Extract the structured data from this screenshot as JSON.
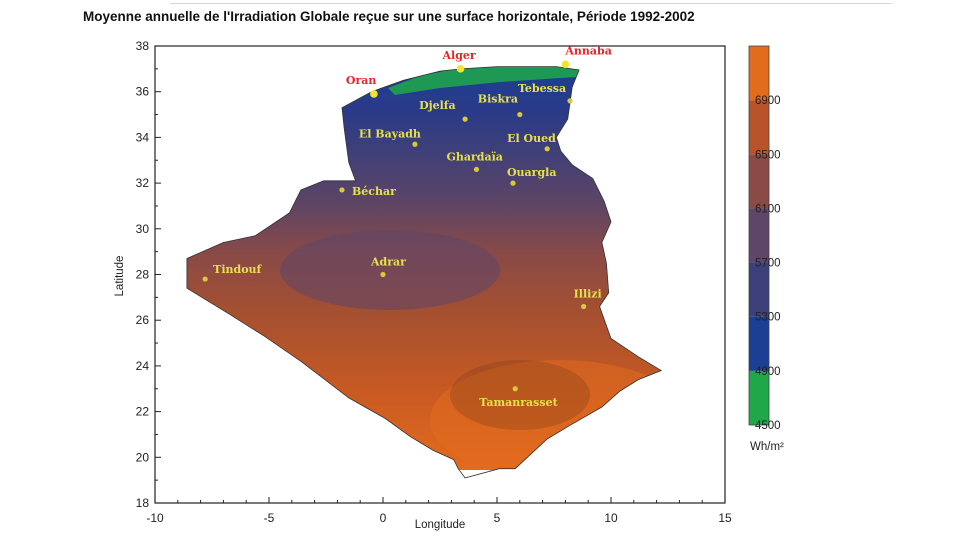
{
  "title": "Moyenne annuelle de l'Irradiation Globale reçue sur une surface horizontale, Période 1992-2002",
  "axes": {
    "xlabel": "Longitude",
    "ylabel": "Latitude",
    "xlim": [
      -10,
      15
    ],
    "ylim": [
      18,
      38
    ],
    "xticks": [
      "-10",
      "-5",
      "0",
      "5",
      "10",
      "15"
    ],
    "yticks": [
      "18",
      "20",
      "22",
      "24",
      "26",
      "28",
      "30",
      "32",
      "34",
      "36",
      "38"
    ]
  },
  "legend": {
    "unit": "Wh/m²",
    "levels": [
      "4500",
      "4900",
      "5300",
      "5700",
      "6100",
      "6500",
      "6900"
    ],
    "colors": [
      "#1fa84a",
      "#1c3f93",
      "#3d3f7a",
      "#5e4669",
      "#8a4a46",
      "#b9532a",
      "#e36b1e"
    ]
  },
  "cities": [
    {
      "name": "Alger",
      "color": "#e8242b"
    },
    {
      "name": "Annaba",
      "color": "#e8242b"
    },
    {
      "name": "Oran",
      "color": "#e8242b"
    },
    {
      "name": "Tebessa",
      "color": "#e6e14a"
    },
    {
      "name": "Biskra",
      "color": "#e6e14a"
    },
    {
      "name": "Djelfa",
      "color": "#e6e14a"
    },
    {
      "name": "El Bayadh",
      "color": "#e6e14a"
    },
    {
      "name": "El Oued",
      "color": "#e6e14a"
    },
    {
      "name": "Ghardaïa",
      "color": "#e6e14a"
    },
    {
      "name": "Ouargla",
      "color": "#e6e14a"
    },
    {
      "name": "Béchar",
      "color": "#e6e14a"
    },
    {
      "name": "Adrar",
      "color": "#e6e14a"
    },
    {
      "name": "Tindouf",
      "color": "#e6e14a"
    },
    {
      "name": "Illizi",
      "color": "#e6e14a"
    },
    {
      "name": "Tamanrasset",
      "color": "#e6e14a"
    }
  ]
}
